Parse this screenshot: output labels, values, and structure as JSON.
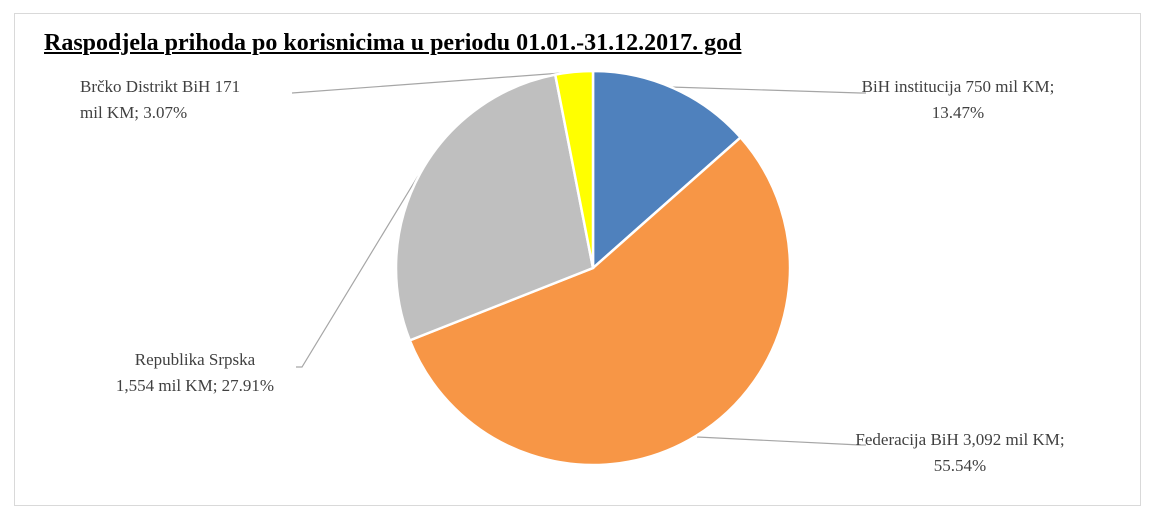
{
  "chart_data": {
    "type": "pie",
    "title": "Raspodjela prihoda po korisnicima u periodu 01.01.-31.12.2017. god",
    "categories": [
      "BiH institucija",
      "Federacija BiH",
      "Republika Srpska",
      "Brčko Distrikt BiH"
    ],
    "values": [
      750,
      3092,
      1554,
      171
    ],
    "value_labels": [
      "750 mil KM; 13.47%",
      "3,092 mil KM; 55.54%",
      "1,554 mil KM; 27.91%",
      "171 mil KM; 3.07%"
    ],
    "colors": [
      "#4f81bd",
      "#f79646",
      "#bfbfbf",
      "#ffff00"
    ]
  }
}
